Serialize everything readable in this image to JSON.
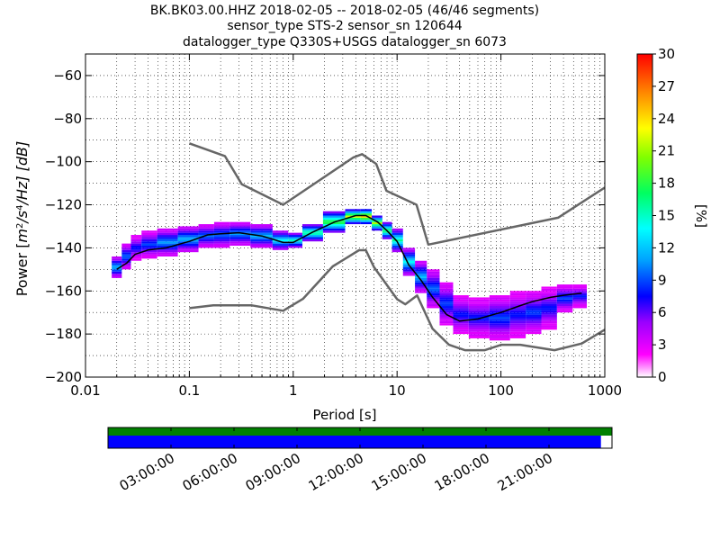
{
  "title_lines": [
    "BK.BK03.00.HHZ   2018-02-05 -- 2018-02-05  (46/46 segments)",
    "sensor_type STS-2 sensor_sn 120644",
    "datalogger_type Q330S+USGS datalogger_sn 6073"
  ],
  "colorbar": {
    "label": "[%]",
    "min": 0,
    "max": 30,
    "ticks": [
      "0",
      "3",
      "6",
      "9",
      "12",
      "15",
      "18",
      "21",
      "24",
      "27",
      "30"
    ]
  },
  "timeline": {
    "ticks": [
      "03:00:00",
      "06:00:00",
      "09:00:00",
      "12:00:00",
      "15:00:00",
      "18:00:00",
      "21:00:00"
    ],
    "coverage_colors": {
      "top": "#008000",
      "bottom": "#0000ff"
    },
    "coverage_fraction": 0.978
  },
  "chart_data": {
    "type": "heatmap",
    "xlabel": "Period [s]",
    "ylabel": "Power [m²/s⁴/Hz] [dB]",
    "ylabel_parts": {
      "lead": "Power [",
      "units": "m",
      "sup1": "2",
      "mid": "/s",
      "sup2": "4",
      "tail": "/Hz] [dB]"
    },
    "x_scale": "log",
    "xlim": [
      0.01,
      1000
    ],
    "ylim": [
      -200,
      -50
    ],
    "x_ticks": [
      {
        "v": 0.01,
        "label": "0.01"
      },
      {
        "v": 0.1,
        "label": "0.1"
      },
      {
        "v": 1,
        "label": "1"
      },
      {
        "v": 10,
        "label": "10"
      },
      {
        "v": 100,
        "label": "100"
      },
      {
        "v": 1000,
        "label": "1000"
      }
    ],
    "y_ticks": [
      {
        "v": -60,
        "label": "−60"
      },
      {
        "v": -80,
        "label": "−80"
      },
      {
        "v": -100,
        "label": "−100"
      },
      {
        "v": -120,
        "label": "−120"
      },
      {
        "v": -140,
        "label": "−140"
      },
      {
        "v": -160,
        "label": "−160"
      },
      {
        "v": -180,
        "label": "−180"
      },
      {
        "v": -200,
        "label": "−200"
      }
    ],
    "grid": "dotted",
    "noise_model_high": [
      [
        0.1,
        -91.5
      ],
      [
        0.22,
        -97.4
      ],
      [
        0.32,
        -110.5
      ],
      [
        0.8,
        -120
      ],
      [
        3.8,
        -98
      ],
      [
        4.6,
        -96.5
      ],
      [
        6.3,
        -101
      ],
      [
        7.9,
        -113.5
      ],
      [
        15.4,
        -120
      ],
      [
        20,
        -138.5
      ],
      [
        354.8,
        -126
      ],
      [
        1000,
        -112
      ]
    ],
    "noise_model_low": [
      [
        0.1,
        -168
      ],
      [
        0.17,
        -166.7
      ],
      [
        0.4,
        -166.7
      ],
      [
        0.8,
        -169.2
      ],
      [
        1.24,
        -163.7
      ],
      [
        2.4,
        -148.6
      ],
      [
        4.3,
        -141.1
      ],
      [
        5,
        -141.1
      ],
      [
        6,
        -149
      ],
      [
        10,
        -163.8
      ],
      [
        12,
        -166.2
      ],
      [
        15.6,
        -162.1
      ],
      [
        21.9,
        -177.5
      ],
      [
        31.6,
        -185
      ],
      [
        45,
        -187.5
      ],
      [
        70,
        -187.5
      ],
      [
        101,
        -185
      ],
      [
        154,
        -185
      ],
      [
        328,
        -187.5
      ],
      [
        600,
        -184.4
      ],
      [
        1000,
        -178
      ]
    ],
    "mode_curve": [
      [
        0.02,
        -150
      ],
      [
        0.025,
        -147
      ],
      [
        0.03,
        -143
      ],
      [
        0.04,
        -141
      ],
      [
        0.06,
        -140
      ],
      [
        0.1,
        -137
      ],
      [
        0.15,
        -134
      ],
      [
        0.2,
        -133.5
      ],
      [
        0.3,
        -133
      ],
      [
        0.5,
        -134.5
      ],
      [
        0.8,
        -137.5
      ],
      [
        1.0,
        -137.5
      ],
      [
        1.5,
        -133
      ],
      [
        2.5,
        -128
      ],
      [
        4.0,
        -125
      ],
      [
        5.0,
        -125
      ],
      [
        6.5,
        -128
      ],
      [
        8.0,
        -132
      ],
      [
        10.0,
        -137
      ],
      [
        13.0,
        -148
      ],
      [
        17.0,
        -155
      ],
      [
        22.0,
        -163
      ],
      [
        30.0,
        -171
      ],
      [
        40.0,
        -174
      ],
      [
        60.0,
        -173
      ],
      [
        100.0,
        -170
      ],
      [
        150.0,
        -167
      ],
      [
        200.0,
        -165
      ],
      [
        300.0,
        -163
      ],
      [
        400.0,
        -162
      ],
      [
        600.0,
        -161
      ]
    ],
    "psd_density": [
      {
        "p": 0.02,
        "y0": -154,
        "y1": -144,
        "pct": 12
      },
      {
        "p": 0.025,
        "y0": -150,
        "y1": -138,
        "pct": 10
      },
      {
        "p": 0.03,
        "y0": -146,
        "y1": -134,
        "pct": 8
      },
      {
        "p": 0.04,
        "y0": -145,
        "y1": -132,
        "pct": 9
      },
      {
        "p": 0.06,
        "y0": -144,
        "y1": -131,
        "pct": 11
      },
      {
        "p": 0.1,
        "y0": -142,
        "y1": -130,
        "pct": 12
      },
      {
        "p": 0.15,
        "y0": -140,
        "y1": -129,
        "pct": 10
      },
      {
        "p": 0.2,
        "y0": -140,
        "y1": -128,
        "pct": 10
      },
      {
        "p": 0.3,
        "y0": -139,
        "y1": -128,
        "pct": 11
      },
      {
        "p": 0.5,
        "y0": -140,
        "y1": -129,
        "pct": 12
      },
      {
        "p": 0.8,
        "y0": -141,
        "y1": -132,
        "pct": 14
      },
      {
        "p": 1.0,
        "y0": -140,
        "y1": -133,
        "pct": 15
      },
      {
        "p": 1.5,
        "y0": -137,
        "y1": -129,
        "pct": 17
      },
      {
        "p": 2.5,
        "y0": -133,
        "y1": -123,
        "pct": 19
      },
      {
        "p": 4.0,
        "y0": -129,
        "y1": -122,
        "pct": 22
      },
      {
        "p": 5.0,
        "y0": -129,
        "y1": -122,
        "pct": 24
      },
      {
        "p": 6.5,
        "y0": -132,
        "y1": -125,
        "pct": 21
      },
      {
        "p": 8.0,
        "y0": -136,
        "y1": -128,
        "pct": 18
      },
      {
        "p": 10.0,
        "y0": -142,
        "y1": -131,
        "pct": 16
      },
      {
        "p": 13.0,
        "y0": -153,
        "y1": -140,
        "pct": 14
      },
      {
        "p": 17.0,
        "y0": -161,
        "y1": -146,
        "pct": 12
      },
      {
        "p": 22.0,
        "y0": -168,
        "y1": -150,
        "pct": 10
      },
      {
        "p": 30.0,
        "y0": -176,
        "y1": -156,
        "pct": 9
      },
      {
        "p": 40.0,
        "y0": -180,
        "y1": -162,
        "pct": 8
      },
      {
        "p": 60.0,
        "y0": -182,
        "y1": -163,
        "pct": 8
      },
      {
        "p": 100.0,
        "y0": -183,
        "y1": -162,
        "pct": 9
      },
      {
        "p": 150.0,
        "y0": -182,
        "y1": -160,
        "pct": 8
      },
      {
        "p": 200.0,
        "y0": -180,
        "y1": -160,
        "pct": 9
      },
      {
        "p": 300.0,
        "y0": -178,
        "y1": -158,
        "pct": 8
      },
      {
        "p": 400.0,
        "y0": -170,
        "y1": -157,
        "pct": 9
      },
      {
        "p": 600.0,
        "y0": -168,
        "y1": -157,
        "pct": 8
      }
    ]
  }
}
